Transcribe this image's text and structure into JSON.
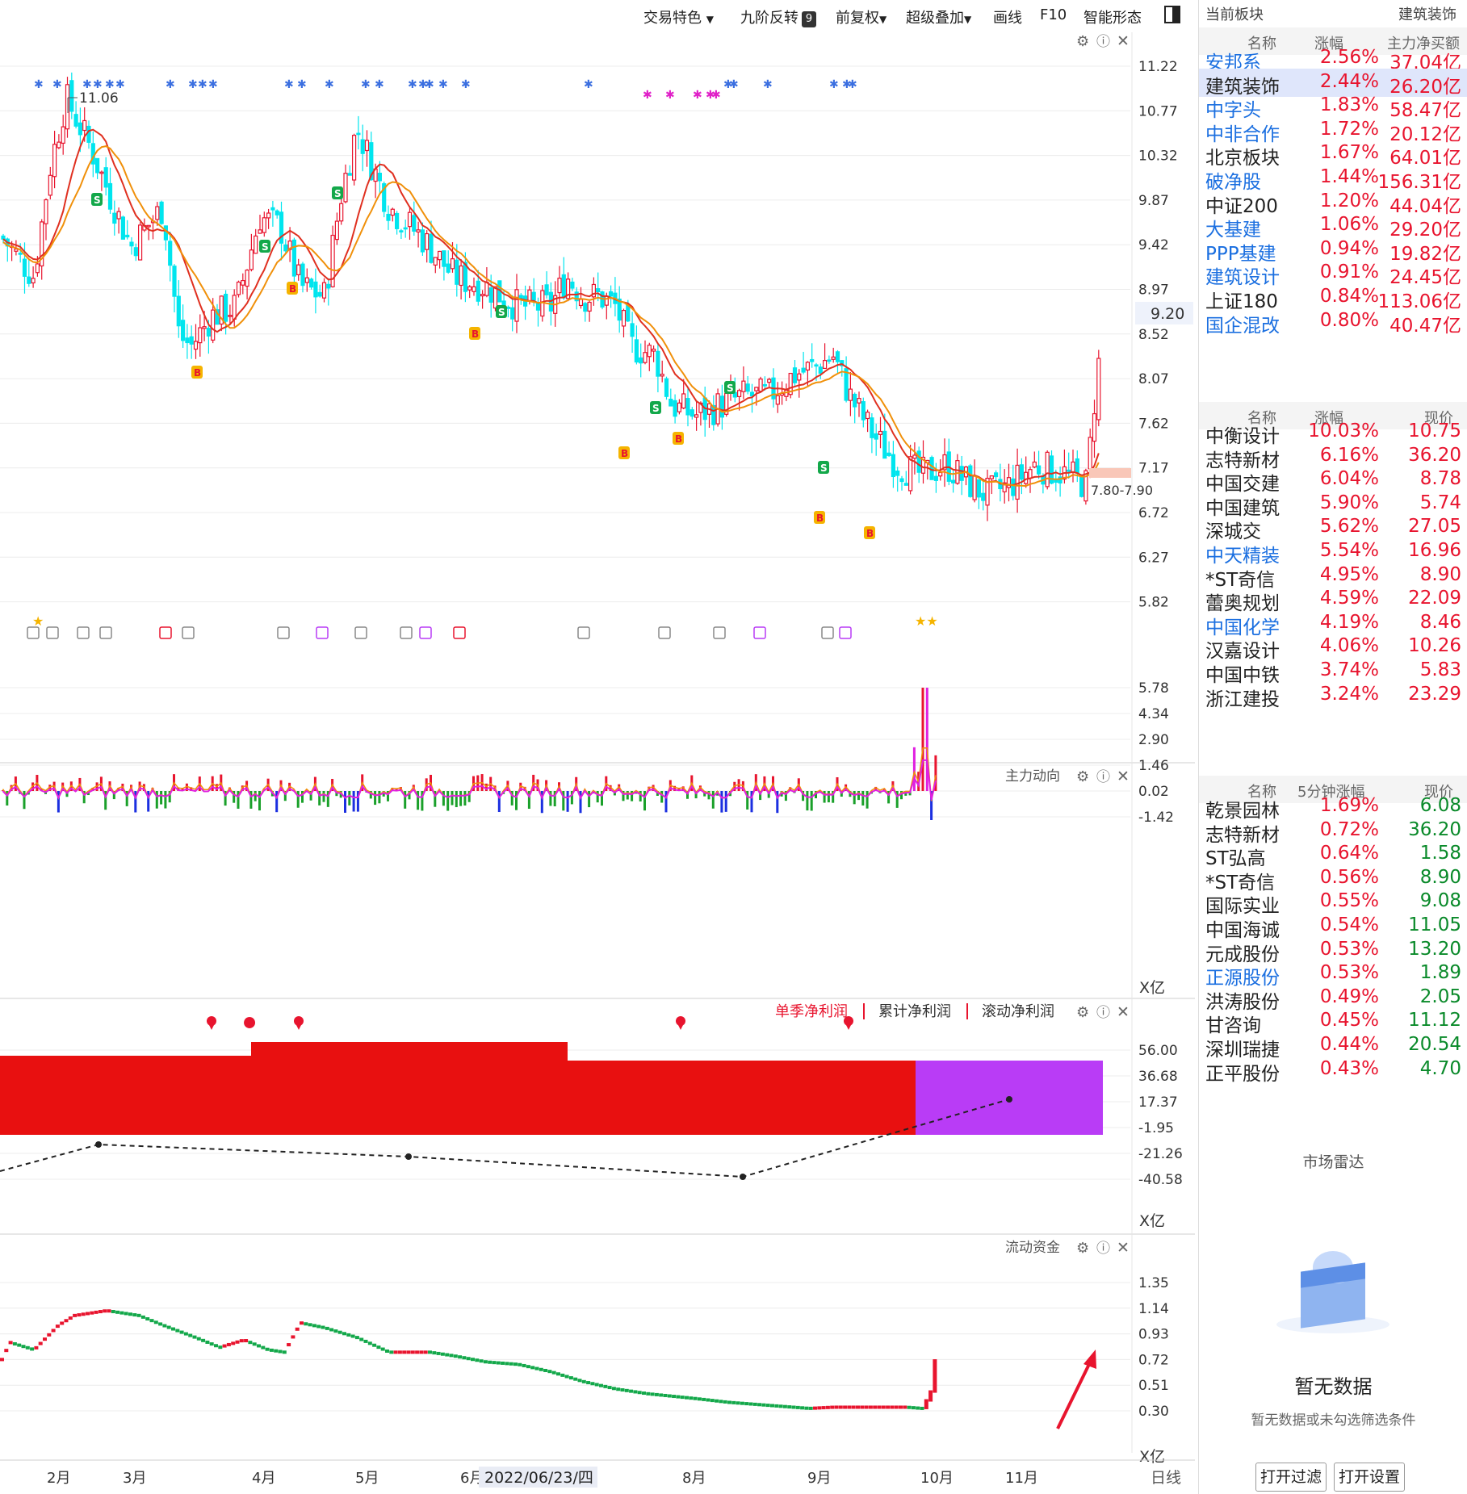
{
  "toolbar": {
    "items": [
      "交易特色",
      "九阶反转",
      "前复权",
      "超级叠加",
      "画线",
      "F10",
      "智能形态"
    ],
    "nine_badge": "9"
  },
  "main_chart": {
    "price_ticks": [
      "11.22",
      "10.77",
      "10.32",
      "9.87",
      "9.42",
      "8.97",
      "8.52",
      "8.07",
      "7.62",
      "7.17",
      "6.72",
      "6.27",
      "5.82"
    ],
    "current_price": "9.20",
    "high_label": "11.06",
    "range_label": "7.80-7.90"
  },
  "main_force_panel": {
    "title": "主力动向",
    "ticks": [
      "5.78",
      "4.34",
      "2.90",
      "1.46",
      "0.02",
      "-1.42"
    ],
    "unit": "X亿"
  },
  "profit_panel": {
    "tabs": [
      "单季净利润",
      "累计净利润",
      "滚动净利润"
    ],
    "ticks": [
      "56.00",
      "36.68",
      "17.37",
      "-1.95",
      "-21.26",
      "-40.58"
    ],
    "unit": "X亿"
  },
  "liquidity_panel": {
    "title": "流动资金",
    "ticks": [
      "1.35",
      "1.14",
      "0.93",
      "0.72",
      "0.51",
      "0.30"
    ],
    "unit": "X亿"
  },
  "x_axis": {
    "months": [
      "2月",
      "3月",
      "4月",
      "5月",
      "6月",
      "8月",
      "9月",
      "10月",
      "11月"
    ],
    "cursor_date": "2022/06/23/四",
    "period": "日线"
  },
  "right_panel": {
    "current_sector_label": "当前板块",
    "current_sector_value": "建筑装饰",
    "sectors": {
      "headers": [
        "名称",
        "涨幅",
        "主力净买额"
      ],
      "rows": [
        {
          "name": "安邦系",
          "change": "2.56%",
          "value": "37.04亿",
          "link": true
        },
        {
          "name": "建筑装饰",
          "change": "2.44%",
          "value": "26.20亿",
          "link": false,
          "selected": true
        },
        {
          "name": "中字头",
          "change": "1.83%",
          "value": "58.47亿",
          "link": true
        },
        {
          "name": "中非合作",
          "change": "1.72%",
          "value": "20.12亿",
          "link": true
        },
        {
          "name": "北京板块",
          "change": "1.67%",
          "value": "64.01亿",
          "link": false
        },
        {
          "name": "破净股",
          "change": "1.44%",
          "value": "156.31亿",
          "link": true
        },
        {
          "name": "中证200",
          "change": "1.20%",
          "value": "44.04亿",
          "link": false
        },
        {
          "name": "大基建",
          "change": "1.06%",
          "value": "29.20亿",
          "link": true
        },
        {
          "name": "PPP基建",
          "change": "0.94%",
          "value": "19.82亿",
          "link": true
        },
        {
          "name": "建筑设计",
          "change": "0.91%",
          "value": "24.45亿",
          "link": true
        },
        {
          "name": "上证180",
          "change": "0.84%",
          "value": "113.06亿",
          "link": false
        },
        {
          "name": "国企混改",
          "change": "0.80%",
          "value": "40.47亿",
          "link": true
        }
      ]
    },
    "stocks": {
      "headers": [
        "名称",
        "涨幅",
        "现价"
      ],
      "rows": [
        {
          "name": "中衡设计",
          "change": "10.03%",
          "value": "10.75",
          "link": false
        },
        {
          "name": "志特新材",
          "change": "6.16%",
          "value": "36.20",
          "link": false
        },
        {
          "name": "中国交建",
          "change": "6.04%",
          "value": "8.78",
          "link": false
        },
        {
          "name": "中国建筑",
          "change": "5.90%",
          "value": "5.74",
          "link": false
        },
        {
          "name": "深城交",
          "change": "5.62%",
          "value": "27.05",
          "link": false
        },
        {
          "name": "中天精装",
          "change": "5.54%",
          "value": "16.96",
          "link": true
        },
        {
          "name": "*ST奇信",
          "change": "4.95%",
          "value": "8.90",
          "link": false
        },
        {
          "name": "蕾奥规划",
          "change": "4.59%",
          "value": "22.09",
          "link": false
        },
        {
          "name": "中国化学",
          "change": "4.19%",
          "value": "8.46",
          "link": true
        },
        {
          "name": "汉嘉设计",
          "change": "4.06%",
          "value": "10.26",
          "link": false
        },
        {
          "name": "中国中铁",
          "change": "3.74%",
          "value": "5.83",
          "link": false
        },
        {
          "name": "浙江建投",
          "change": "3.24%",
          "value": "23.29",
          "link": false
        }
      ]
    },
    "five_min": {
      "headers": [
        "名称",
        "5分钟涨幅",
        "现价"
      ],
      "rows": [
        {
          "name": "乾景园林",
          "change": "1.69%",
          "value": "6.08",
          "link": false
        },
        {
          "name": "志特新材",
          "change": "0.72%",
          "value": "36.20",
          "link": false
        },
        {
          "name": "ST弘高",
          "change": "0.64%",
          "value": "1.58",
          "link": false
        },
        {
          "name": "*ST奇信",
          "change": "0.56%",
          "value": "8.90",
          "link": false
        },
        {
          "name": "国际实业",
          "change": "0.55%",
          "value": "9.08",
          "link": false
        },
        {
          "name": "中国海诚",
          "change": "0.54%",
          "value": "11.05",
          "link": false
        },
        {
          "name": "元成股份",
          "change": "0.53%",
          "value": "13.20",
          "link": false
        },
        {
          "name": "正源股份",
          "change": "0.53%",
          "value": "1.89",
          "link": true
        },
        {
          "name": "洪涛股份",
          "change": "0.49%",
          "value": "2.05",
          "link": false
        },
        {
          "name": "甘咨询",
          "change": "0.45%",
          "value": "11.12",
          "link": false
        },
        {
          "name": "深圳瑞捷",
          "change": "0.44%",
          "value": "20.54",
          "link": false
        },
        {
          "name": "正平股份",
          "change": "0.43%",
          "value": "4.70",
          "link": false
        }
      ]
    },
    "radar": {
      "title": "市场雷达",
      "empty_title": "暂无数据",
      "empty_sub": "暂无数据或未勾选筛选条件",
      "btn_filter": "打开过滤",
      "btn_settings": "打开设置"
    }
  },
  "colors": {
    "up": "#e8142e",
    "down_candle": "#00e5ee",
    "ma_fast": "#e03020",
    "ma_slow": "#f0900a",
    "purple": "#b93cf6",
    "link_blue": "#1b6fe0"
  }
}
